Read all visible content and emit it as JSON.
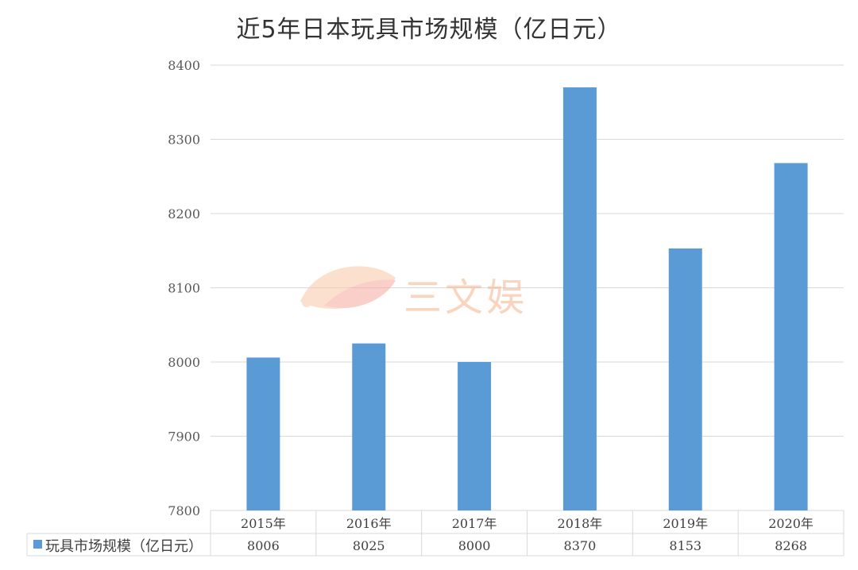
{
  "chart_data": {
    "type": "bar",
    "title": "近5年日本玩具市场规模（亿日元）",
    "categories": [
      "2015年",
      "2016年",
      "2017年",
      "2018年",
      "2019年",
      "2020年"
    ],
    "series": [
      {
        "name": "玩具市场规模（亿日元）",
        "values": [
          8006,
          8025,
          8000,
          8370,
          8153,
          8268
        ]
      }
    ],
    "ylim": [
      7800,
      8400
    ],
    "yticks": [
      "7800",
      "7900",
      "8000",
      "8100",
      "8200",
      "8300",
      "8400"
    ],
    "grid": true,
    "legend": "data-table-left",
    "bar_color": "#5b9bd5",
    "grid_color": "#d9d9d9",
    "watermark": "三文娱"
  }
}
